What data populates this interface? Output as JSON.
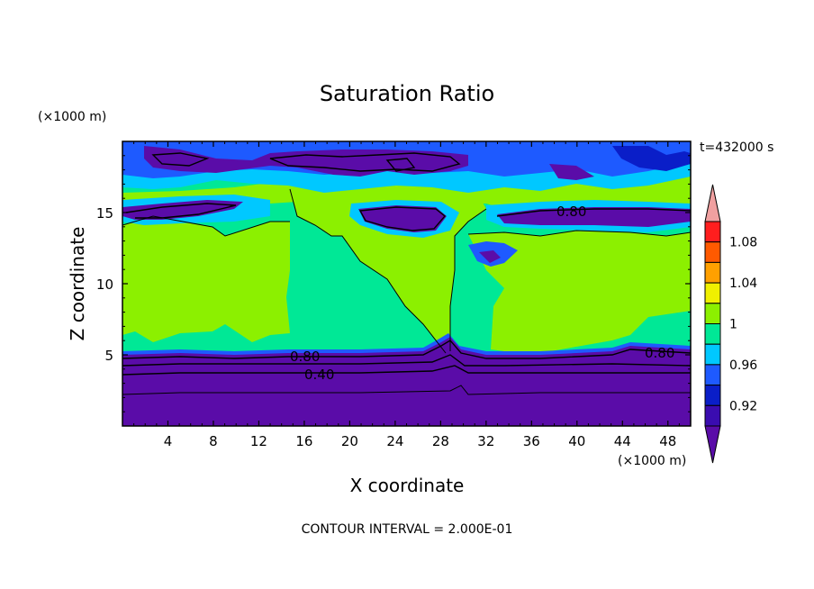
{
  "chart_data": {
    "type": "heatmap",
    "title": "Saturation Ratio",
    "xlabel": "X coordinate",
    "ylabel": "Z coordinate",
    "x_unit": "(×1000 m)",
    "y_unit": "(×1000 m)",
    "time_label": "t=432000 s",
    "footer": "CONTOUR INTERVAL = 2.000E-01",
    "xlim": [
      0,
      50
    ],
    "ylim": [
      0,
      20
    ],
    "x_ticks": [
      4,
      8,
      12,
      16,
      20,
      24,
      28,
      32,
      36,
      40,
      44,
      48
    ],
    "y_ticks": [
      5,
      10,
      15
    ],
    "colorbar": {
      "labels": [
        "1.08",
        "1.04",
        "1",
        "0.96",
        "0.92"
      ],
      "colors": [
        "#5a0ca8",
        "#3a0cb0",
        "#0a1ec8",
        "#1e5aff",
        "#00c8ff",
        "#00e896",
        "#8cf000",
        "#f0f000",
        "#ffa000",
        "#ff5a00",
        "#ff1e1e",
        "#f0a0a0"
      ]
    },
    "contour_labels": [
      {
        "text": "0.80",
        "x": 15.2,
        "z": 4.9
      },
      {
        "text": "0.40",
        "x": 17.5,
        "z": 3.6
      },
      {
        "text": "0.80",
        "x": 47.2,
        "z": 5.2
      },
      {
        "text": "0.80",
        "x": 38.6,
        "z": 15.0
      }
    ],
    "regions": [
      {
        "level": "below 0.92",
        "description_z": [
          0,
          5.2
        ]
      },
      {
        "level": "0.96-1",
        "description_z": [
          5.2,
          17.5
        ]
      },
      {
        "level": "1-1.04",
        "description_z": [
          5.5,
          16
        ]
      },
      {
        "level": "below 0.92",
        "description_z": [
          17.5,
          20
        ]
      }
    ]
  }
}
